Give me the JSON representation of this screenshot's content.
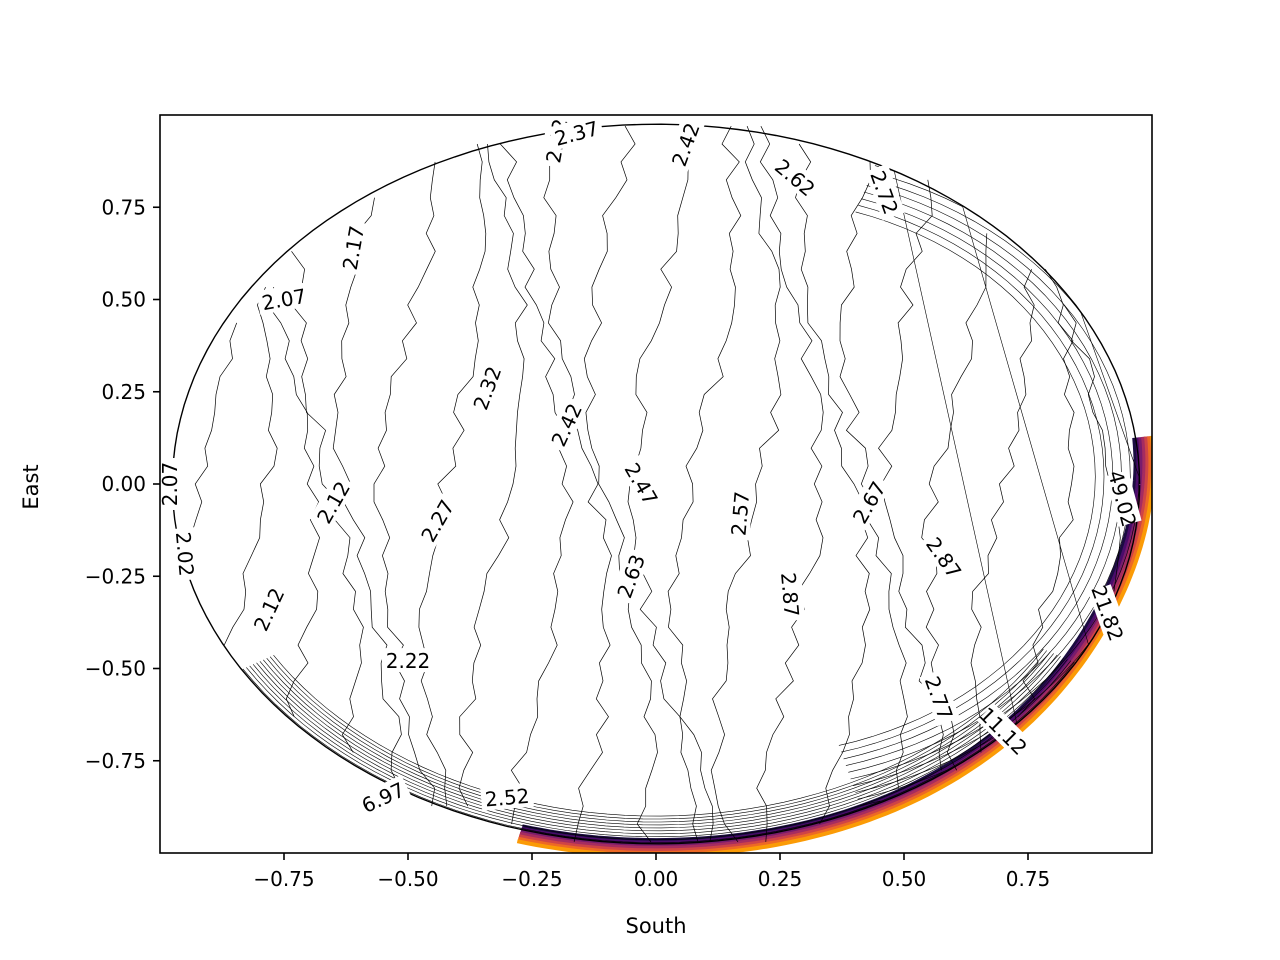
{
  "chart_data": {
    "type": "contour",
    "title": "",
    "xlabel": "South",
    "ylabel": "East",
    "xlim": [
      -1.0,
      1.0
    ],
    "ylim": [
      -1.0,
      1.0
    ],
    "x_ticks": [
      -0.75,
      -0.5,
      -0.25,
      0.0,
      0.25,
      0.5,
      0.75
    ],
    "x_tick_labels": [
      "−0.75",
      "−0.50",
      "−0.25",
      "0.00",
      "0.25",
      "0.50",
      "0.75"
    ],
    "y_ticks": [
      0.75,
      0.5,
      0.25,
      0.0,
      -0.25,
      -0.5,
      -0.75
    ],
    "y_tick_labels": [
      "0.75",
      "0.50",
      "0.25",
      "0.00",
      "−0.25",
      "−0.50",
      "−0.75"
    ],
    "grid": false,
    "legend": "none",
    "colormap": "magma",
    "line_color": "#000000",
    "rim_colors": [
      "#1b0c41",
      "#4a0c6b",
      "#781c6d",
      "#a52c60",
      "#cf4446",
      "#ed6925",
      "#fb9b06"
    ],
    "contour_labels": [
      {
        "text": "2.07",
        "x": -0.75,
        "y": 0.5,
        "rotation": 10
      },
      {
        "text": "2.17",
        "x": -0.61,
        "y": 0.64,
        "rotation": 80
      },
      {
        "text": "2.42",
        "x": -0.2,
        "y": 0.93,
        "rotation": 80
      },
      {
        "text": "2.37",
        "x": -0.16,
        "y": 0.95,
        "rotation": 15
      },
      {
        "text": "2.42",
        "x": 0.06,
        "y": 0.92,
        "rotation": 70
      },
      {
        "text": "2.62",
        "x": 0.28,
        "y": 0.83,
        "rotation": -40
      },
      {
        "text": "2.72",
        "x": 0.46,
        "y": 0.79,
        "rotation": -70
      },
      {
        "text": "2.32",
        "x": -0.34,
        "y": 0.26,
        "rotation": 70
      },
      {
        "text": "2.42",
        "x": -0.18,
        "y": 0.16,
        "rotation": 65
      },
      {
        "text": "2.47",
        "x": -0.03,
        "y": 0.0,
        "rotation": -60
      },
      {
        "text": "2.57",
        "x": 0.17,
        "y": -0.08,
        "rotation": 85
      },
      {
        "text": "2.67",
        "x": 0.43,
        "y": -0.05,
        "rotation": 60
      },
      {
        "text": "2.12",
        "x": -0.65,
        "y": -0.05,
        "rotation": 60
      },
      {
        "text": "2.27",
        "x": -0.44,
        "y": -0.1,
        "rotation": 60
      },
      {
        "text": "2.07",
        "x": -0.98,
        "y": 0.0,
        "rotation": 90
      },
      {
        "text": "2.02",
        "x": -0.95,
        "y": -0.19,
        "rotation": -85
      },
      {
        "text": "2.12",
        "x": -0.78,
        "y": -0.34,
        "rotation": 65
      },
      {
        "text": "2.63",
        "x": -0.05,
        "y": -0.25,
        "rotation": 70
      },
      {
        "text": "2.87",
        "x": 0.27,
        "y": -0.3,
        "rotation": -85
      },
      {
        "text": "2.87",
        "x": 0.58,
        "y": -0.2,
        "rotation": -55
      },
      {
        "text": "2.22",
        "x": -0.5,
        "y": -0.48,
        "rotation": 0
      },
      {
        "text": "2.77",
        "x": 0.57,
        "y": -0.58,
        "rotation": -70
      },
      {
        "text": "11.12",
        "x": 0.7,
        "y": -0.67,
        "rotation": -45
      },
      {
        "text": "21.82",
        "x": 0.91,
        "y": -0.35,
        "rotation": -70
      },
      {
        "text": "49.02",
        "x": 0.94,
        "y": -0.04,
        "rotation": -75
      },
      {
        "text": "6.97",
        "x": -0.55,
        "y": -0.85,
        "rotation": 25
      },
      {
        "text": "2.52",
        "x": -0.3,
        "y": -0.85,
        "rotation": 5
      }
    ]
  }
}
